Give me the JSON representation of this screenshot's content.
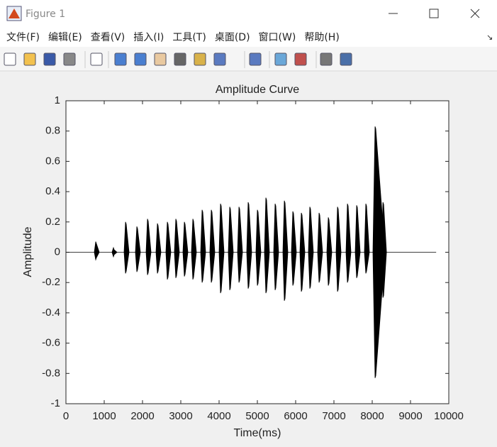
{
  "window": {
    "title": "Figure 1",
    "menu": [
      "文件(F)",
      "编辑(E)",
      "查看(V)",
      "插入(I)",
      "工具(T)",
      "桌面(D)",
      "窗口(W)",
      "帮助(H)"
    ]
  },
  "chart_data": {
    "type": "burst",
    "title": "Amplitude Curve",
    "x_label": "Time(ms)",
    "y_label": "Amplitude",
    "color": "#000000",
    "xlim": [
      0,
      10000
    ],
    "xticks": [
      0,
      1000,
      2000,
      3000,
      4000,
      5000,
      6000,
      7000,
      8000,
      9000,
      10000
    ],
    "ylim": [
      -1,
      1
    ],
    "yticks": [
      -1,
      -0.8,
      -0.6,
      -0.4,
      -0.2,
      0,
      0.2,
      0.4,
      0.6,
      0.8,
      1
    ],
    "baseline": {
      "x": [
        0,
        9670
      ],
      "values": [
        0,
        0
      ]
    },
    "x": [
      778,
      1241,
      1556,
      1852,
      2130,
      2389,
      2648,
      2870,
      3093,
      3315,
      3556,
      3796,
      4037,
      4278,
      4519,
      4759,
      5000,
      5222,
      5463,
      5704,
      5926,
      6148,
      6370,
      6611,
      6852,
      7093,
      7352,
      7593,
      7833,
      8074,
      8280
    ],
    "upper": [
      0.07,
      0.03,
      0.2,
      0.17,
      0.22,
      0.19,
      0.2,
      0.22,
      0.2,
      0.22,
      0.28,
      0.28,
      0.32,
      0.3,
      0.3,
      0.33,
      0.28,
      0.36,
      0.32,
      0.34,
      0.27,
      0.26,
      0.3,
      0.26,
      0.23,
      0.3,
      0.32,
      0.31,
      0.32,
      0.83,
      0.33
    ],
    "lower": [
      -0.05,
      -0.03,
      -0.14,
      -0.13,
      -0.15,
      -0.14,
      -0.18,
      -0.17,
      -0.16,
      -0.18,
      -0.2,
      -0.2,
      -0.27,
      -0.25,
      -0.2,
      -0.24,
      -0.22,
      -0.27,
      -0.25,
      -0.32,
      -0.22,
      -0.26,
      -0.24,
      -0.2,
      -0.22,
      -0.26,
      -0.2,
      -0.17,
      -0.14,
      -0.83,
      -0.3
    ]
  }
}
